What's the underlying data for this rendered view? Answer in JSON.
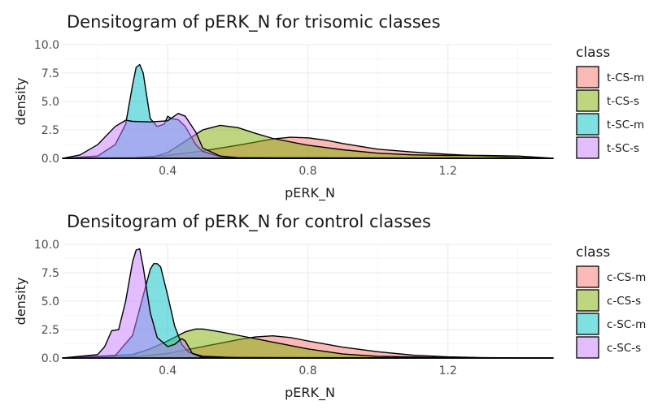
{
  "chart_data": [
    {
      "type": "area",
      "title": "Densitogram of pERK_N for trisomic classes",
      "xlabel": "pERK_N",
      "ylabel": "density",
      "xlim": [
        0.1,
        1.5
      ],
      "ylim": [
        0,
        10
      ],
      "xticks": [
        "0.4",
        "0.8",
        "1.2"
      ],
      "xtick_values": [
        0.4,
        0.8,
        1.2
      ],
      "yticks": [
        "0.0",
        "2.5",
        "5.0",
        "7.5",
        "10.0"
      ],
      "ytick_values": [
        0,
        2.5,
        5,
        7.5,
        10
      ],
      "grid": true,
      "legend_position": "right",
      "legend_title": "class",
      "series": [
        {
          "name": "t-CS-m",
          "color": "#F8766D",
          "x": [
            0.1,
            0.3,
            0.4,
            0.5,
            0.6,
            0.7,
            0.75,
            0.8,
            0.85,
            0.9,
            1.0,
            1.1,
            1.2,
            1.3,
            1.4,
            1.5
          ],
          "y": [
            0,
            0.05,
            0.25,
            0.65,
            1.15,
            1.7,
            1.85,
            1.8,
            1.6,
            1.3,
            0.8,
            0.55,
            0.35,
            0.2,
            0.08,
            0
          ]
        },
        {
          "name": "t-CS-s",
          "color": "#7CAE00",
          "x": [
            0.1,
            0.35,
            0.4,
            0.45,
            0.5,
            0.55,
            0.6,
            0.65,
            0.7,
            0.8,
            0.9,
            1.0,
            1.1,
            1.2,
            1.3,
            1.4,
            1.5
          ],
          "y": [
            0,
            0.05,
            0.5,
            1.5,
            2.5,
            2.9,
            2.7,
            2.2,
            1.75,
            1.15,
            0.75,
            0.45,
            0.3,
            0.25,
            0.25,
            0.2,
            0
          ]
        },
        {
          "name": "t-SC-m",
          "color": "#00BFC4",
          "x": [
            0.1,
            0.2,
            0.25,
            0.28,
            0.3,
            0.31,
            0.32,
            0.33,
            0.35,
            0.37,
            0.39,
            0.4,
            0.41,
            0.43,
            0.45,
            0.48,
            0.5,
            0.55,
            0.6,
            0.7,
            0.8,
            1.5
          ],
          "y": [
            0,
            0.2,
            1.2,
            3.0,
            6.5,
            8.0,
            8.25,
            7.5,
            3.5,
            2.8,
            3.0,
            3.7,
            3.5,
            3.4,
            2.8,
            1.2,
            0.6,
            0.15,
            0.05,
            0.02,
            0,
            0
          ]
        },
        {
          "name": "t-SC-s",
          "color": "#C77CFF",
          "x": [
            0.1,
            0.15,
            0.2,
            0.25,
            0.28,
            0.3,
            0.35,
            0.4,
            0.43,
            0.45,
            0.48,
            0.5,
            0.55,
            0.6,
            1.5
          ],
          "y": [
            0,
            0.3,
            1.2,
            2.8,
            3.35,
            3.25,
            3.2,
            3.3,
            3.95,
            3.7,
            2.3,
            0.9,
            0.2,
            0.05,
            0
          ]
        }
      ]
    },
    {
      "type": "area",
      "title": "Densitogram of pERK_N for control classes",
      "xlabel": "pERK_N",
      "ylabel": "density",
      "xlim": [
        0.1,
        1.5
      ],
      "ylim": [
        0,
        10
      ],
      "xticks": [
        "0.4",
        "0.8",
        "1.2"
      ],
      "xtick_values": [
        0.4,
        0.8,
        1.2
      ],
      "yticks": [
        "0.0",
        "2.5",
        "5.0",
        "7.5",
        "10.0"
      ],
      "ytick_values": [
        0,
        2.5,
        5,
        7.5,
        10
      ],
      "grid": true,
      "legend_position": "right",
      "legend_title": "class",
      "series": [
        {
          "name": "c-CS-m",
          "color": "#F8766D",
          "x": [
            0.1,
            0.3,
            0.4,
            0.5,
            0.6,
            0.65,
            0.7,
            0.75,
            0.8,
            0.9,
            1.0,
            1.1,
            1.2,
            1.3,
            1.5
          ],
          "y": [
            0,
            0.1,
            0.4,
            1.0,
            1.6,
            1.85,
            1.95,
            1.8,
            1.5,
            0.95,
            0.55,
            0.25,
            0.1,
            0.03,
            0
          ]
        },
        {
          "name": "c-CS-s",
          "color": "#7CAE00",
          "x": [
            0.1,
            0.3,
            0.35,
            0.4,
            0.45,
            0.48,
            0.5,
            0.55,
            0.6,
            0.7,
            0.8,
            0.9,
            1.0,
            1.2,
            1.5
          ],
          "y": [
            0,
            0.3,
            0.8,
            1.5,
            2.3,
            2.55,
            2.55,
            2.3,
            2.0,
            1.4,
            0.8,
            0.35,
            0.15,
            0.03,
            0
          ]
        },
        {
          "name": "c-SC-m",
          "color": "#00BFC4",
          "x": [
            0.1,
            0.25,
            0.3,
            0.33,
            0.35,
            0.36,
            0.37,
            0.38,
            0.4,
            0.42,
            0.44,
            0.46,
            0.5,
            0.6,
            1.5
          ],
          "y": [
            0,
            0.2,
            2.0,
            5.5,
            7.8,
            8.3,
            8.3,
            8.0,
            5.5,
            2.8,
            1.2,
            0.5,
            0.15,
            0.02,
            0
          ]
        },
        {
          "name": "c-SC-s",
          "color": "#C77CFF",
          "x": [
            0.1,
            0.2,
            0.22,
            0.24,
            0.26,
            0.28,
            0.3,
            0.31,
            0.32,
            0.33,
            0.35,
            0.37,
            0.4,
            0.42,
            0.44,
            0.45,
            0.47,
            0.5,
            1.5
          ],
          "y": [
            0,
            0.3,
            1.0,
            2.4,
            2.5,
            5.0,
            8.5,
            9.5,
            9.6,
            8.0,
            4.0,
            1.8,
            1.0,
            1.2,
            1.7,
            1.5,
            0.4,
            0.05,
            0
          ]
        }
      ]
    }
  ]
}
